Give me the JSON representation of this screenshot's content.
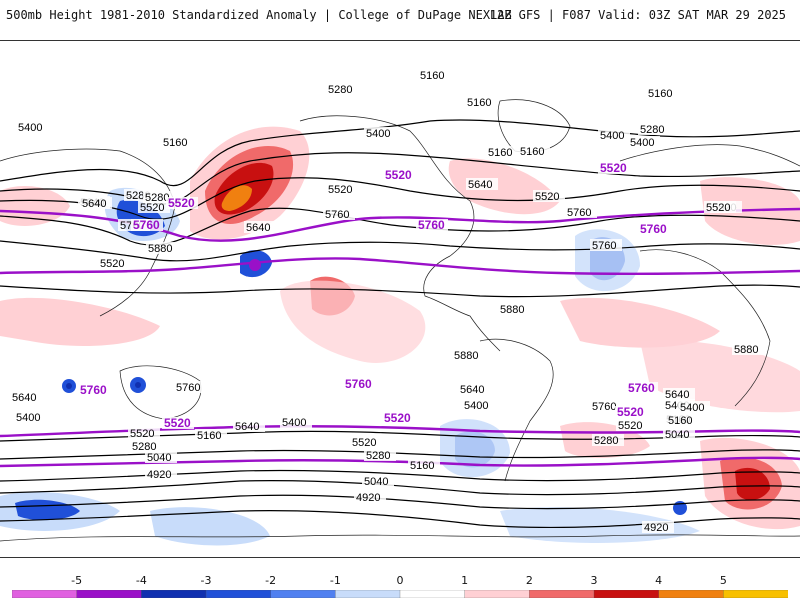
{
  "header": {
    "title_left": "500mb Height 1981-2010 Standardized Anomaly | College of DuPage NEXLAB",
    "title_right": "12Z GFS | F087 Valid: 03Z SAT MAR 29 2025"
  },
  "colorbar": {
    "labels": [
      "-5",
      "-4",
      "-3",
      "-2",
      "-1",
      "0",
      "1",
      "2",
      "3",
      "4",
      "5"
    ],
    "colors": [
      "#e060e0",
      "#9a10c8",
      "#1030b0",
      "#2050d8",
      "#5080f0",
      "#c8dcfa",
      "#ffffff",
      "#ffd0d4",
      "#f06a6a",
      "#c81010",
      "#f08010",
      "#f8c000"
    ]
  },
  "map": {
    "contour_color": "#000000",
    "highlight_color": "#9a10c8",
    "labels": {
      "nh": [
        "5160",
        "5280",
        "5160",
        "5160",
        "5400",
        "5400",
        "5160",
        "5280",
        "5160",
        "5400",
        "5160",
        "5640",
        "5280",
        "5520",
        "5520",
        "5520",
        "5640",
        "5520",
        "5280",
        "5400",
        "5640",
        "5520",
        "5760",
        "5760",
        "5640",
        "5760",
        "5880",
        "5760",
        "5520",
        "5880",
        "5880",
        "5880"
      ],
      "nh_purple": [
        "5520",
        "5520",
        "5520",
        "5760",
        "5760",
        "5760"
      ],
      "sh": [
        "5640",
        "5400",
        "5160",
        "5400",
        "5520",
        "5280",
        "5040",
        "4920",
        "5760",
        "5640",
        "5400",
        "5520",
        "5280",
        "5160",
        "5040",
        "4920",
        "5640",
        "5760",
        "5400",
        "5160",
        "5520",
        "5280",
        "5040",
        "5640",
        "5400",
        "5160",
        "4920"
      ],
      "sh_purple": [
        "5760",
        "5520",
        "5760",
        "5520",
        "5760",
        "5520"
      ]
    }
  }
}
